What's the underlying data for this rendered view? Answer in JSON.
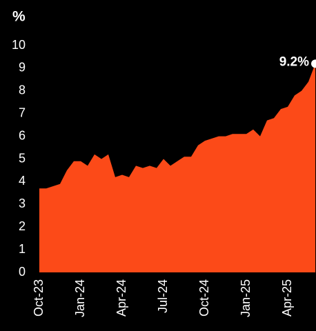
{
  "chart_data": {
    "type": "area",
    "y_label": "%",
    "categories": [
      "Oct-23",
      null,
      null,
      null,
      null,
      null,
      "Jan-24",
      null,
      null,
      null,
      null,
      null,
      "Apr-24",
      null,
      null,
      null,
      null,
      null,
      "Jul-24",
      null,
      null,
      null,
      null,
      null,
      "Oct-24",
      null,
      null,
      null,
      null,
      null,
      "Jan-25",
      null,
      null,
      null,
      null,
      null,
      "Apr-25",
      null,
      null,
      null,
      null
    ],
    "values": [
      3.7,
      3.7,
      3.8,
      3.9,
      4.5,
      4.9,
      4.9,
      4.7,
      5.2,
      5.0,
      5.2,
      4.2,
      4.3,
      4.2,
      4.7,
      4.6,
      4.7,
      4.6,
      5.0,
      4.7,
      4.9,
      5.1,
      5.1,
      5.6,
      5.8,
      5.9,
      6.0,
      6.0,
      6.1,
      6.1,
      6.1,
      6.3,
      6.0,
      6.7,
      6.8,
      7.2,
      7.3,
      7.8,
      8.0,
      8.4,
      9.2
    ],
    "value_labels": [
      null,
      null,
      null,
      null,
      null,
      null,
      null,
      null,
      null,
      null,
      null,
      null,
      null,
      null,
      null,
      null,
      null,
      null,
      null,
      null,
      null,
      null,
      null,
      null,
      null,
      null,
      null,
      null,
      null,
      null,
      null,
      null,
      null,
      null,
      null,
      null,
      null,
      null,
      null,
      null,
      "9.2%"
    ],
    "color": "#fc4a18",
    "ylim": [
      0,
      10
    ],
    "yticks": [
      0,
      1,
      2,
      3,
      4,
      5,
      6,
      7,
      8,
      9,
      10
    ],
    "grid": false
  }
}
